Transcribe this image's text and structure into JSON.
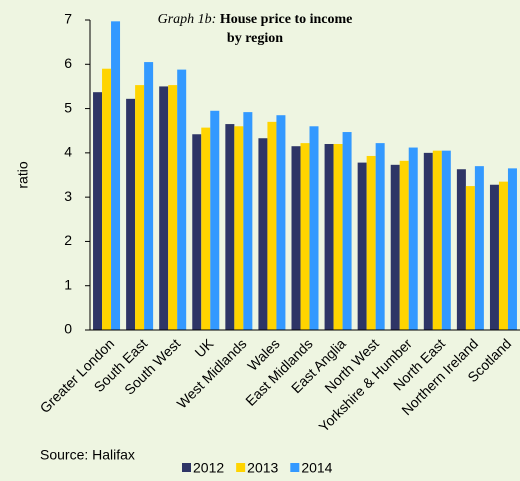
{
  "chart_data": {
    "type": "bar",
    "title_prefix": "Graph 1b:",
    "title": "House price to income by region",
    "y_label": "ratio",
    "source": "Source: Halifax",
    "categories": [
      "Greater London",
      "South East",
      "South West",
      "UK",
      "West Midlands",
      "Wales",
      "East Midlands",
      "East Anglia",
      "North West",
      "Yorkshire & Humber",
      "North East",
      "Northern Ireland",
      "Scotland"
    ],
    "series": [
      {
        "name": "2012",
        "color": "#2e3566",
        "values": [
          5.37,
          5.22,
          5.5,
          4.42,
          4.65,
          4.33,
          4.15,
          4.2,
          3.78,
          3.73,
          4.0,
          3.63,
          3.28
        ]
      },
      {
        "name": "2013",
        "color": "#ffd400",
        "values": [
          5.9,
          5.53,
          5.53,
          4.57,
          4.6,
          4.7,
          4.22,
          4.2,
          3.93,
          3.82,
          4.05,
          3.25,
          3.35
        ]
      },
      {
        "name": "2014",
        "color": "#3399ff",
        "values": [
          6.97,
          6.05,
          5.88,
          4.95,
          4.92,
          4.85,
          4.6,
          4.47,
          4.22,
          4.12,
          4.05,
          3.7,
          3.65
        ]
      }
    ],
    "ylim": [
      0,
      7
    ],
    "yticks": [
      0,
      1,
      2,
      3,
      4,
      5,
      6,
      7
    ],
    "grid": false
  }
}
